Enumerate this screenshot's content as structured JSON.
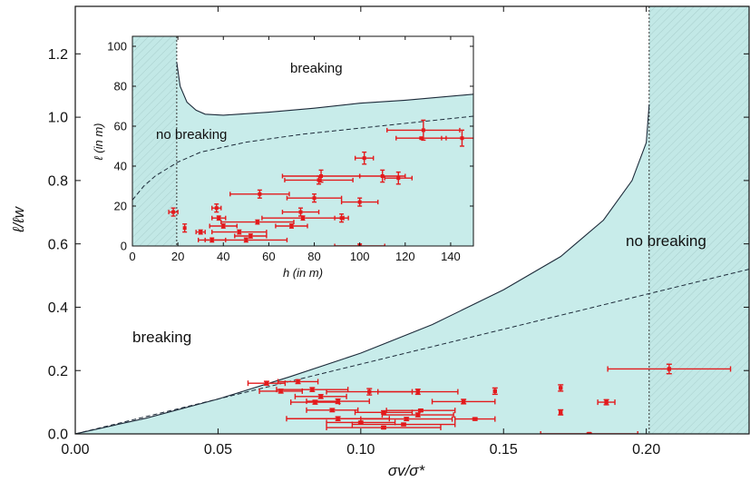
{
  "colors": {
    "stable_fill": "#c8ecea",
    "hatch_fill": "#bfe6e4",
    "curve": "#1d2b3a",
    "data": "#e31a1c"
  },
  "chart_data": [
    {
      "type": "scatter",
      "role": "main",
      "xlabel": "σv/σ*",
      "ylabel": "ℓ/ℓw",
      "xlim": [
        0,
        0.236
      ],
      "ylim": [
        0,
        1.35
      ],
      "xticks": [
        "0.00",
        "0.05",
        "0.10",
        "0.15",
        "0.20"
      ],
      "yticks": [
        "0.0",
        "0.2",
        "0.4",
        "0.6",
        "0.8",
        "1.0",
        "1.2"
      ],
      "region_labels": [
        "breaking",
        "no breaking"
      ],
      "vertical_line": 0.201,
      "boundary_curve": [
        [
          0,
          0
        ],
        [
          0.025,
          0.05
        ],
        [
          0.05,
          0.11
        ],
        [
          0.075,
          0.18
        ],
        [
          0.1,
          0.255
        ],
        [
          0.125,
          0.345
        ],
        [
          0.15,
          0.455
        ],
        [
          0.17,
          0.56
        ],
        [
          0.185,
          0.675
        ],
        [
          0.195,
          0.8
        ],
        [
          0.2,
          0.92
        ],
        [
          0.201,
          1.04
        ]
      ],
      "dashed_curve": [
        [
          0,
          0
        ],
        [
          0.236,
          0.52
        ]
      ],
      "points": [
        {
          "x": 0.208,
          "y": 0.205,
          "xerr": 0.0215,
          "yerr": 0.015
        },
        {
          "x": 0.186,
          "y": 0.1,
          "xerr": 0.003,
          "yerr": 0.008
        },
        {
          "x": 0.17,
          "y": 0.145,
          "xerr": 0,
          "yerr": 0.01
        },
        {
          "x": 0.17,
          "y": 0.068,
          "xerr": 0,
          "yerr": 0.008
        },
        {
          "x": 0.067,
          "y": 0.16,
          "xerr": 0.0065,
          "yerr": 0.006
        },
        {
          "x": 0.078,
          "y": 0.165,
          "xerr": 0.007,
          "yerr": 0.006
        },
        {
          "x": 0.083,
          "y": 0.14,
          "xerr": 0.0125,
          "yerr": 0.006
        },
        {
          "x": 0.072,
          "y": 0.135,
          "xerr": 0.0075,
          "yerr": 0.006
        },
        {
          "x": 0.103,
          "y": 0.133,
          "xerr": 0.015,
          "yerr": 0.01
        },
        {
          "x": 0.12,
          "y": 0.133,
          "xerr": 0.014,
          "yerr": 0.008
        },
        {
          "x": 0.147,
          "y": 0.135,
          "xerr": 0,
          "yerr": 0.01
        },
        {
          "x": 0.086,
          "y": 0.118,
          "xerr": 0.009,
          "yerr": 0.006
        },
        {
          "x": 0.092,
          "y": 0.103,
          "xerr": 0.011,
          "yerr": 0.007
        },
        {
          "x": 0.136,
          "y": 0.102,
          "xerr": 0.011,
          "yerr": 0.007
        },
        {
          "x": 0.084,
          "y": 0.1,
          "xerr": 0.0085,
          "yerr": 0.006
        },
        {
          "x": 0.09,
          "y": 0.075,
          "xerr": 0.009,
          "yerr": 0.005
        },
        {
          "x": 0.121,
          "y": 0.074,
          "xerr": 0.012,
          "yerr": 0.004
        },
        {
          "x": 0.108,
          "y": 0.068,
          "xerr": 0.01,
          "yerr": 0.005
        },
        {
          "x": 0.12,
          "y": 0.06,
          "xerr": 0.0125,
          "yerr": 0.006
        },
        {
          "x": 0.092,
          "y": 0.048,
          "xerr": 0.018,
          "yerr": 0.006
        },
        {
          "x": 0.116,
          "y": 0.047,
          "xerr": 0.016,
          "yerr": 0.005
        },
        {
          "x": 0.14,
          "y": 0.047,
          "xerr": 0.007,
          "yerr": 0.004
        },
        {
          "x": 0.1,
          "y": 0.036,
          "xerr": 0.012,
          "yerr": 0.004
        },
        {
          "x": 0.115,
          "y": 0.03,
          "xerr": 0.018,
          "yerr": 0.004
        },
        {
          "x": 0.108,
          "y": 0.02,
          "xerr": 0.02,
          "yerr": 0.004
        },
        {
          "x": 0.18,
          "y": 0.0,
          "xerr": 0.017,
          "yerr": 0.003
        }
      ]
    },
    {
      "type": "scatter",
      "role": "inset",
      "xlabel": "h (in m)",
      "ylabel": "ℓ (in m)",
      "xlim": [
        0,
        150
      ],
      "ylim": [
        0,
        105
      ],
      "xticks": [
        "0",
        "20",
        "40",
        "60",
        "80",
        "100",
        "120",
        "140"
      ],
      "yticks": [
        "0",
        "20",
        "40",
        "60",
        "80",
        "100"
      ],
      "region_labels": [
        "breaking",
        "no breaking"
      ],
      "vertical_line": 19.5,
      "boundary_curve": [
        [
          19.5,
          92
        ],
        [
          21,
          80
        ],
        [
          24,
          72
        ],
        [
          28,
          68
        ],
        [
          32,
          66
        ],
        [
          40,
          65.5
        ],
        [
          60,
          67
        ],
        [
          80,
          69
        ],
        [
          100,
          71.5
        ],
        [
          120,
          73
        ],
        [
          150,
          76
        ]
      ],
      "dashed_curve": [
        [
          0,
          23
        ],
        [
          5,
          30
        ],
        [
          10,
          35
        ],
        [
          20,
          42
        ],
        [
          30,
          47
        ],
        [
          50,
          52
        ],
        [
          75,
          56
        ],
        [
          100,
          59
        ],
        [
          125,
          62
        ],
        [
          150,
          65
        ]
      ],
      "points": [
        {
          "x": 145,
          "y": 54,
          "xerr": 9,
          "yerr": 4
        },
        {
          "x": 128,
          "y": 58,
          "xerr": 16,
          "yerr": 5
        },
        {
          "x": 127,
          "y": 54,
          "xerr": 11,
          "yerr": 0
        },
        {
          "x": 102,
          "y": 44,
          "xerr": 4,
          "yerr": 3
        },
        {
          "x": 110,
          "y": 35,
          "xerr": 10,
          "yerr": 3
        },
        {
          "x": 117,
          "y": 34,
          "xerr": 6,
          "yerr": 3
        },
        {
          "x": 83,
          "y": 35,
          "xerr": 17,
          "yerr": 3
        },
        {
          "x": 82,
          "y": 33,
          "xerr": 15,
          "yerr": 2
        },
        {
          "x": 56,
          "y": 26,
          "xerr": 13,
          "yerr": 2
        },
        {
          "x": 80,
          "y": 24,
          "xerr": 12,
          "yerr": 2
        },
        {
          "x": 100,
          "y": 22,
          "xerr": 8,
          "yerr": 2
        },
        {
          "x": 37,
          "y": 19,
          "xerr": 2,
          "yerr": 2
        },
        {
          "x": 18,
          "y": 17,
          "xerr": 2,
          "yerr": 2
        },
        {
          "x": 74,
          "y": 17,
          "xerr": 8,
          "yerr": 2
        },
        {
          "x": 92,
          "y": 14,
          "xerr": 3,
          "yerr": 2
        },
        {
          "x": 38,
          "y": 14,
          "xerr": 3,
          "yerr": 1
        },
        {
          "x": 75,
          "y": 14,
          "xerr": 18,
          "yerr": 1
        },
        {
          "x": 55,
          "y": 12,
          "xerr": 16,
          "yerr": 1
        },
        {
          "x": 40,
          "y": 10,
          "xerr": 6,
          "yerr": 1
        },
        {
          "x": 70,
          "y": 10,
          "xerr": 7,
          "yerr": 1
        },
        {
          "x": 23,
          "y": 9,
          "xerr": 0,
          "yerr": 2
        },
        {
          "x": 30,
          "y": 7,
          "xerr": 2,
          "yerr": 1
        },
        {
          "x": 47,
          "y": 7,
          "xerr": 12,
          "yerr": 1
        },
        {
          "x": 52,
          "y": 5,
          "xerr": 7,
          "yerr": 1
        },
        {
          "x": 35,
          "y": 3,
          "xerr": 6,
          "yerr": 1
        },
        {
          "x": 50,
          "y": 3,
          "xerr": 18,
          "yerr": 1
        },
        {
          "x": 100,
          "y": 0,
          "xerr": 11,
          "yerr": 1
        }
      ]
    }
  ]
}
